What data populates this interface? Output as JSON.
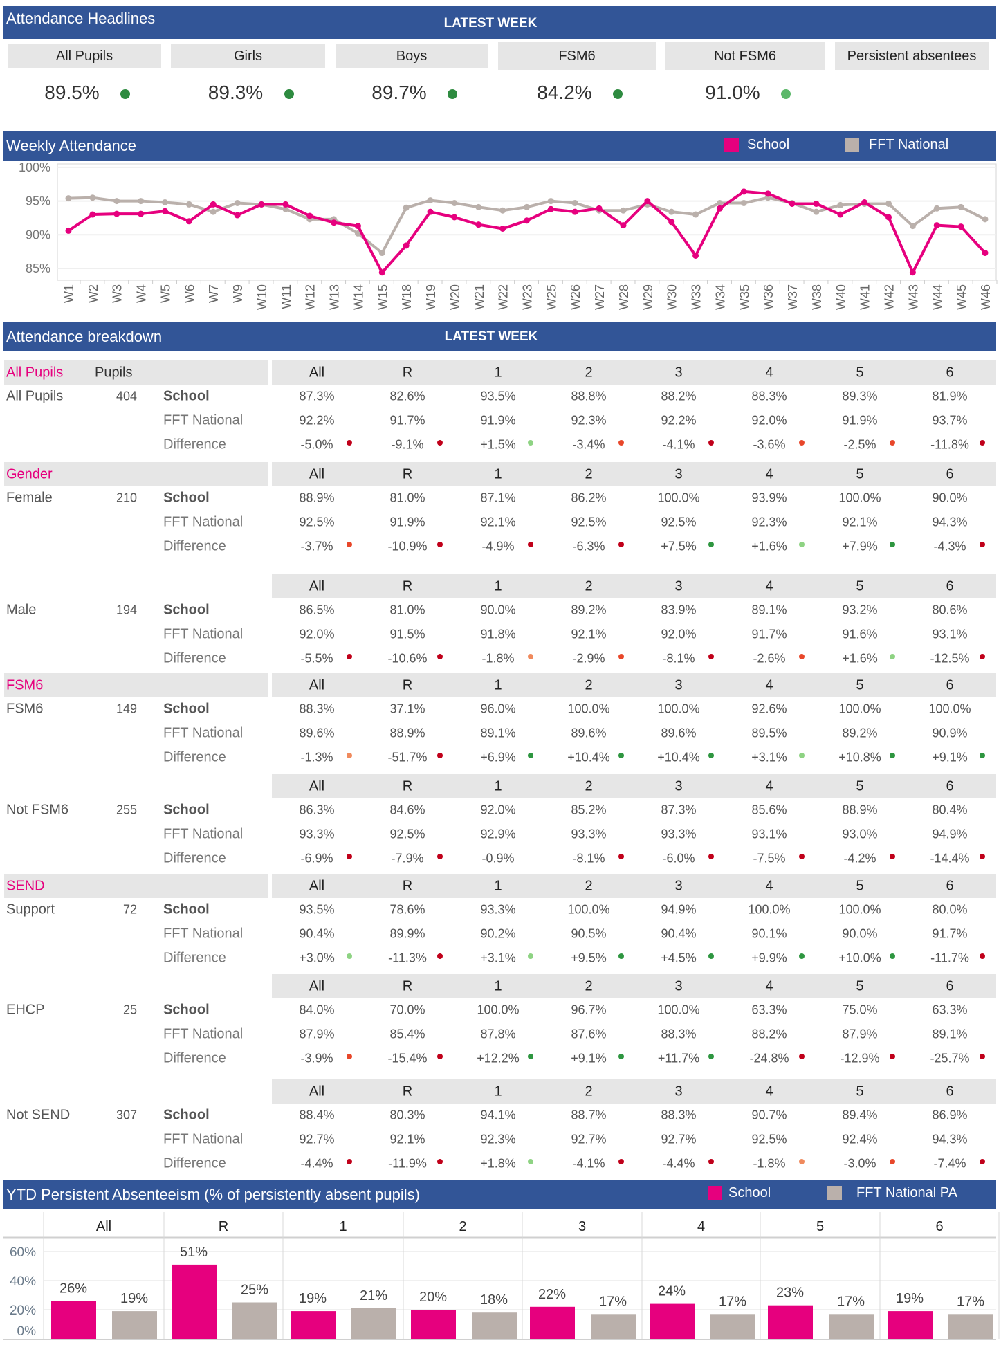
{
  "headlines": {
    "title": "Attendance Headlines",
    "latest_week": "LATEST WEEK",
    "tiles": [
      {
        "label": "All Pupils",
        "value": "89.5%",
        "dot": "#2e8b40"
      },
      {
        "label": "Girls",
        "value": "89.3%",
        "dot": "#2e8b40"
      },
      {
        "label": "Boys",
        "value": "89.7%",
        "dot": "#2e8b40"
      },
      {
        "label": "FSM6",
        "value": "84.2%",
        "dot": "#2e8b40"
      },
      {
        "label": "Not FSM6",
        "value": "91.0%",
        "dot": "#5cb86a"
      },
      {
        "label": "Persistent absentees",
        "value": null,
        "dot": null
      }
    ]
  },
  "weekly": {
    "title": "Weekly Attendance",
    "legend": [
      "School",
      "FFT National"
    ]
  },
  "colors": {
    "header": "#325597",
    "school": "#e6007e",
    "national": "#bab0ab",
    "dark_red": "#c0001a",
    "orange": "#e8472a",
    "light_orange": "#f08a5d",
    "light_green": "#8ed383",
    "green": "#2e9640"
  },
  "chart_data": [
    {
      "type": "line",
      "title": "Weekly Attendance",
      "ylim": [
        83.25,
        100.5
      ],
      "yticks": [
        "85%",
        "90%",
        "95%",
        "100%"
      ],
      "ytick_values": [
        85,
        90,
        95,
        100
      ],
      "grid": true,
      "legend": "top-right",
      "x": [
        "W1",
        "W2",
        "W3",
        "W4",
        "W5",
        "W6",
        "W7",
        "W9",
        "W10",
        "W11",
        "W12",
        "W13",
        "W14",
        "W15",
        "W18",
        "W19",
        "W20",
        "W21",
        "W22",
        "W23",
        "W25",
        "W26",
        "W27",
        "W28",
        "W29",
        "W30",
        "W33",
        "W34",
        "W35",
        "W36",
        "W37",
        "W38",
        "W40",
        "W41",
        "W42",
        "W43",
        "W44",
        "W45",
        "W46"
      ],
      "series": [
        {
          "name": "School",
          "values": [
            90.6,
            93.0,
            93.1,
            93.1,
            93.5,
            92.0,
            94.5,
            92.9,
            94.5,
            94.5,
            92.8,
            91.8,
            91.3,
            84.4,
            88.4,
            93.4,
            92.6,
            91.5,
            90.9,
            92.1,
            93.8,
            93.4,
            93.9,
            91.4,
            95.0,
            91.9,
            86.9,
            93.9,
            96.4,
            96.1,
            94.6,
            94.6,
            93.0,
            94.8,
            92.6,
            84.4,
            91.4,
            91.2,
            87.3
          ]
        },
        {
          "name": "FFT National",
          "values": [
            95.4,
            95.5,
            95.0,
            95.0,
            94.8,
            94.5,
            93.4,
            94.7,
            94.5,
            93.8,
            92.3,
            92.3,
            90.2,
            87.3,
            94.0,
            95.1,
            94.7,
            94.1,
            93.6,
            94.1,
            95.0,
            94.7,
            93.6,
            93.6,
            94.5,
            93.4,
            93.0,
            94.7,
            94.7,
            95.5,
            94.7,
            93.4,
            94.4,
            94.6,
            94.6,
            91.3,
            93.9,
            94.1,
            92.3
          ]
        }
      ]
    },
    {
      "type": "bar",
      "title": "YTD Persistent Absenteeism (% of persistently absent pupils)",
      "ylim": [
        0,
        60
      ],
      "yticks": [
        "0%",
        "20%",
        "40%",
        "60%"
      ],
      "ytick_values": [
        0,
        20,
        40,
        60
      ],
      "legend": "top-right",
      "categories": [
        "All",
        "R",
        "1",
        "2",
        "3",
        "4",
        "5",
        "6"
      ],
      "series": [
        {
          "name": "School",
          "values": [
            26,
            51,
            19,
            20,
            22,
            24,
            23,
            19
          ],
          "labels": [
            "26%",
            "51%",
            "19%",
            "20%",
            "22%",
            "24%",
            "23%",
            "19%"
          ]
        },
        {
          "name": "FFT National PA",
          "values": [
            19,
            25,
            21,
            18,
            17,
            17,
            17,
            17
          ],
          "labels": [
            "19%",
            "25%",
            "21%",
            "18%",
            "17%",
            "17%",
            "17%",
            "17%"
          ]
        }
      ]
    }
  ],
  "breakdown": {
    "title": "Attendance breakdown",
    "latest_week": "LATEST WEEK",
    "pupils_label": "Pupils",
    "grades": [
      "All",
      "R",
      "1",
      "2",
      "3",
      "4",
      "5",
      "6"
    ],
    "row_labels": [
      "School",
      "FFT National",
      "Difference"
    ],
    "blocks": [
      {
        "section": "All Pupils",
        "name": "All Pupils",
        "pupils": "404",
        "school": [
          "87.3%",
          "82.6%",
          "93.5%",
          "88.8%",
          "88.2%",
          "88.3%",
          "89.3%",
          "81.9%"
        ],
        "national": [
          "92.2%",
          "91.7%",
          "91.9%",
          "92.3%",
          "92.2%",
          "92.0%",
          "91.9%",
          "93.7%"
        ],
        "difference": [
          "-5.0%",
          "-9.1%",
          "+1.5%",
          "-3.4%",
          "-4.1%",
          "-3.6%",
          "-2.5%",
          "-11.8%"
        ],
        "dots": [
          "dark_red",
          "dark_red",
          "light_green",
          "orange",
          "dark_red",
          "orange",
          "orange",
          "dark_red"
        ]
      },
      {
        "section": "Gender",
        "name": "Female",
        "pupils": "210",
        "school": [
          "88.9%",
          "81.0%",
          "87.1%",
          "86.2%",
          "100.0%",
          "93.9%",
          "100.0%",
          "90.0%"
        ],
        "national": [
          "92.5%",
          "91.9%",
          "92.1%",
          "92.5%",
          "92.5%",
          "92.3%",
          "92.1%",
          "94.3%"
        ],
        "difference": [
          "-3.7%",
          "-10.9%",
          "-4.9%",
          "-6.3%",
          "+7.5%",
          "+1.6%",
          "+7.9%",
          "-4.3%"
        ],
        "dots": [
          "orange",
          "dark_red",
          "dark_red",
          "dark_red",
          "green",
          "light_green",
          "green",
          "dark_red"
        ]
      },
      {
        "section": null,
        "name": "Male",
        "pupils": "194",
        "school": [
          "86.5%",
          "81.0%",
          "90.0%",
          "89.2%",
          "83.9%",
          "89.1%",
          "93.2%",
          "80.6%"
        ],
        "national": [
          "92.0%",
          "91.5%",
          "91.8%",
          "92.1%",
          "92.0%",
          "91.7%",
          "91.6%",
          "93.1%"
        ],
        "difference": [
          "-5.5%",
          "-10.6%",
          "-1.8%",
          "-2.9%",
          "-8.1%",
          "-2.6%",
          "+1.6%",
          "-12.5%"
        ],
        "dots": [
          "dark_red",
          "dark_red",
          "light_orange",
          "orange",
          "dark_red",
          "orange",
          "light_green",
          "dark_red"
        ]
      },
      {
        "section": "FSM6",
        "name": "FSM6",
        "pupils": "149",
        "school": [
          "88.3%",
          "37.1%",
          "96.0%",
          "100.0%",
          "100.0%",
          "92.6%",
          "100.0%",
          "100.0%"
        ],
        "national": [
          "89.6%",
          "88.9%",
          "89.1%",
          "89.6%",
          "89.6%",
          "89.5%",
          "89.2%",
          "90.9%"
        ],
        "difference": [
          "-1.3%",
          "-51.7%",
          "+6.9%",
          "+10.4%",
          "+10.4%",
          "+3.1%",
          "+10.8%",
          "+9.1%"
        ],
        "dots": [
          "light_orange",
          "dark_red",
          "green",
          "green",
          "green",
          "light_green",
          "green",
          "green"
        ]
      },
      {
        "section": null,
        "name": "Not FSM6",
        "pupils": "255",
        "school": [
          "86.3%",
          "84.6%",
          "92.0%",
          "85.2%",
          "87.3%",
          "85.6%",
          "88.9%",
          "80.4%"
        ],
        "national": [
          "93.3%",
          "92.5%",
          "92.9%",
          "93.3%",
          "93.3%",
          "93.1%",
          "93.0%",
          "94.9%"
        ],
        "difference": [
          "-6.9%",
          "-7.9%",
          "-0.9%",
          "-8.1%",
          "-6.0%",
          "-7.5%",
          "-4.2%",
          "-14.4%"
        ],
        "dots": [
          "dark_red",
          "dark_red",
          null,
          "dark_red",
          "dark_red",
          "dark_red",
          "dark_red",
          "dark_red"
        ]
      },
      {
        "section": "SEND",
        "name": "Support",
        "pupils": "72",
        "school": [
          "93.5%",
          "78.6%",
          "93.3%",
          "100.0%",
          "94.9%",
          "100.0%",
          "100.0%",
          "80.0%"
        ],
        "national": [
          "90.4%",
          "89.9%",
          "90.2%",
          "90.5%",
          "90.4%",
          "90.1%",
          "90.0%",
          "91.7%"
        ],
        "difference": [
          "+3.0%",
          "-11.3%",
          "+3.1%",
          "+9.5%",
          "+4.5%",
          "+9.9%",
          "+10.0%",
          "-11.7%"
        ],
        "dots": [
          "light_green",
          "dark_red",
          "light_green",
          "green",
          "green",
          "green",
          "green",
          "dark_red"
        ]
      },
      {
        "section": null,
        "name": "EHCP",
        "pupils": "25",
        "school": [
          "84.0%",
          "70.0%",
          "100.0%",
          "96.7%",
          "100.0%",
          "63.3%",
          "75.0%",
          "63.3%"
        ],
        "national": [
          "87.9%",
          "85.4%",
          "87.8%",
          "87.6%",
          "88.3%",
          "88.2%",
          "87.9%",
          "89.1%"
        ],
        "difference": [
          "-3.9%",
          "-15.4%",
          "+12.2%",
          "+9.1%",
          "+11.7%",
          "-24.8%",
          "-12.9%",
          "-25.7%"
        ],
        "dots": [
          "orange",
          "dark_red",
          "green",
          "green",
          "green",
          "dark_red",
          "dark_red",
          "dark_red"
        ]
      },
      {
        "section": null,
        "name": "Not SEND",
        "pupils": "307",
        "school": [
          "88.4%",
          "80.3%",
          "94.1%",
          "88.7%",
          "88.3%",
          "90.7%",
          "89.4%",
          "86.9%"
        ],
        "national": [
          "92.7%",
          "92.1%",
          "92.3%",
          "92.7%",
          "92.7%",
          "92.5%",
          "92.4%",
          "94.3%"
        ],
        "difference": [
          "-4.4%",
          "-11.9%",
          "+1.8%",
          "-4.1%",
          "-4.4%",
          "-1.8%",
          "-3.0%",
          "-7.4%"
        ],
        "dots": [
          "dark_red",
          "dark_red",
          "light_green",
          "dark_red",
          "dark_red",
          "light_orange",
          "orange",
          "dark_red"
        ]
      }
    ]
  },
  "pa": {
    "title": "YTD Persistent Absenteeism (% of persistently absent pupils)",
    "legend": [
      "School",
      "FFT National PA"
    ]
  }
}
